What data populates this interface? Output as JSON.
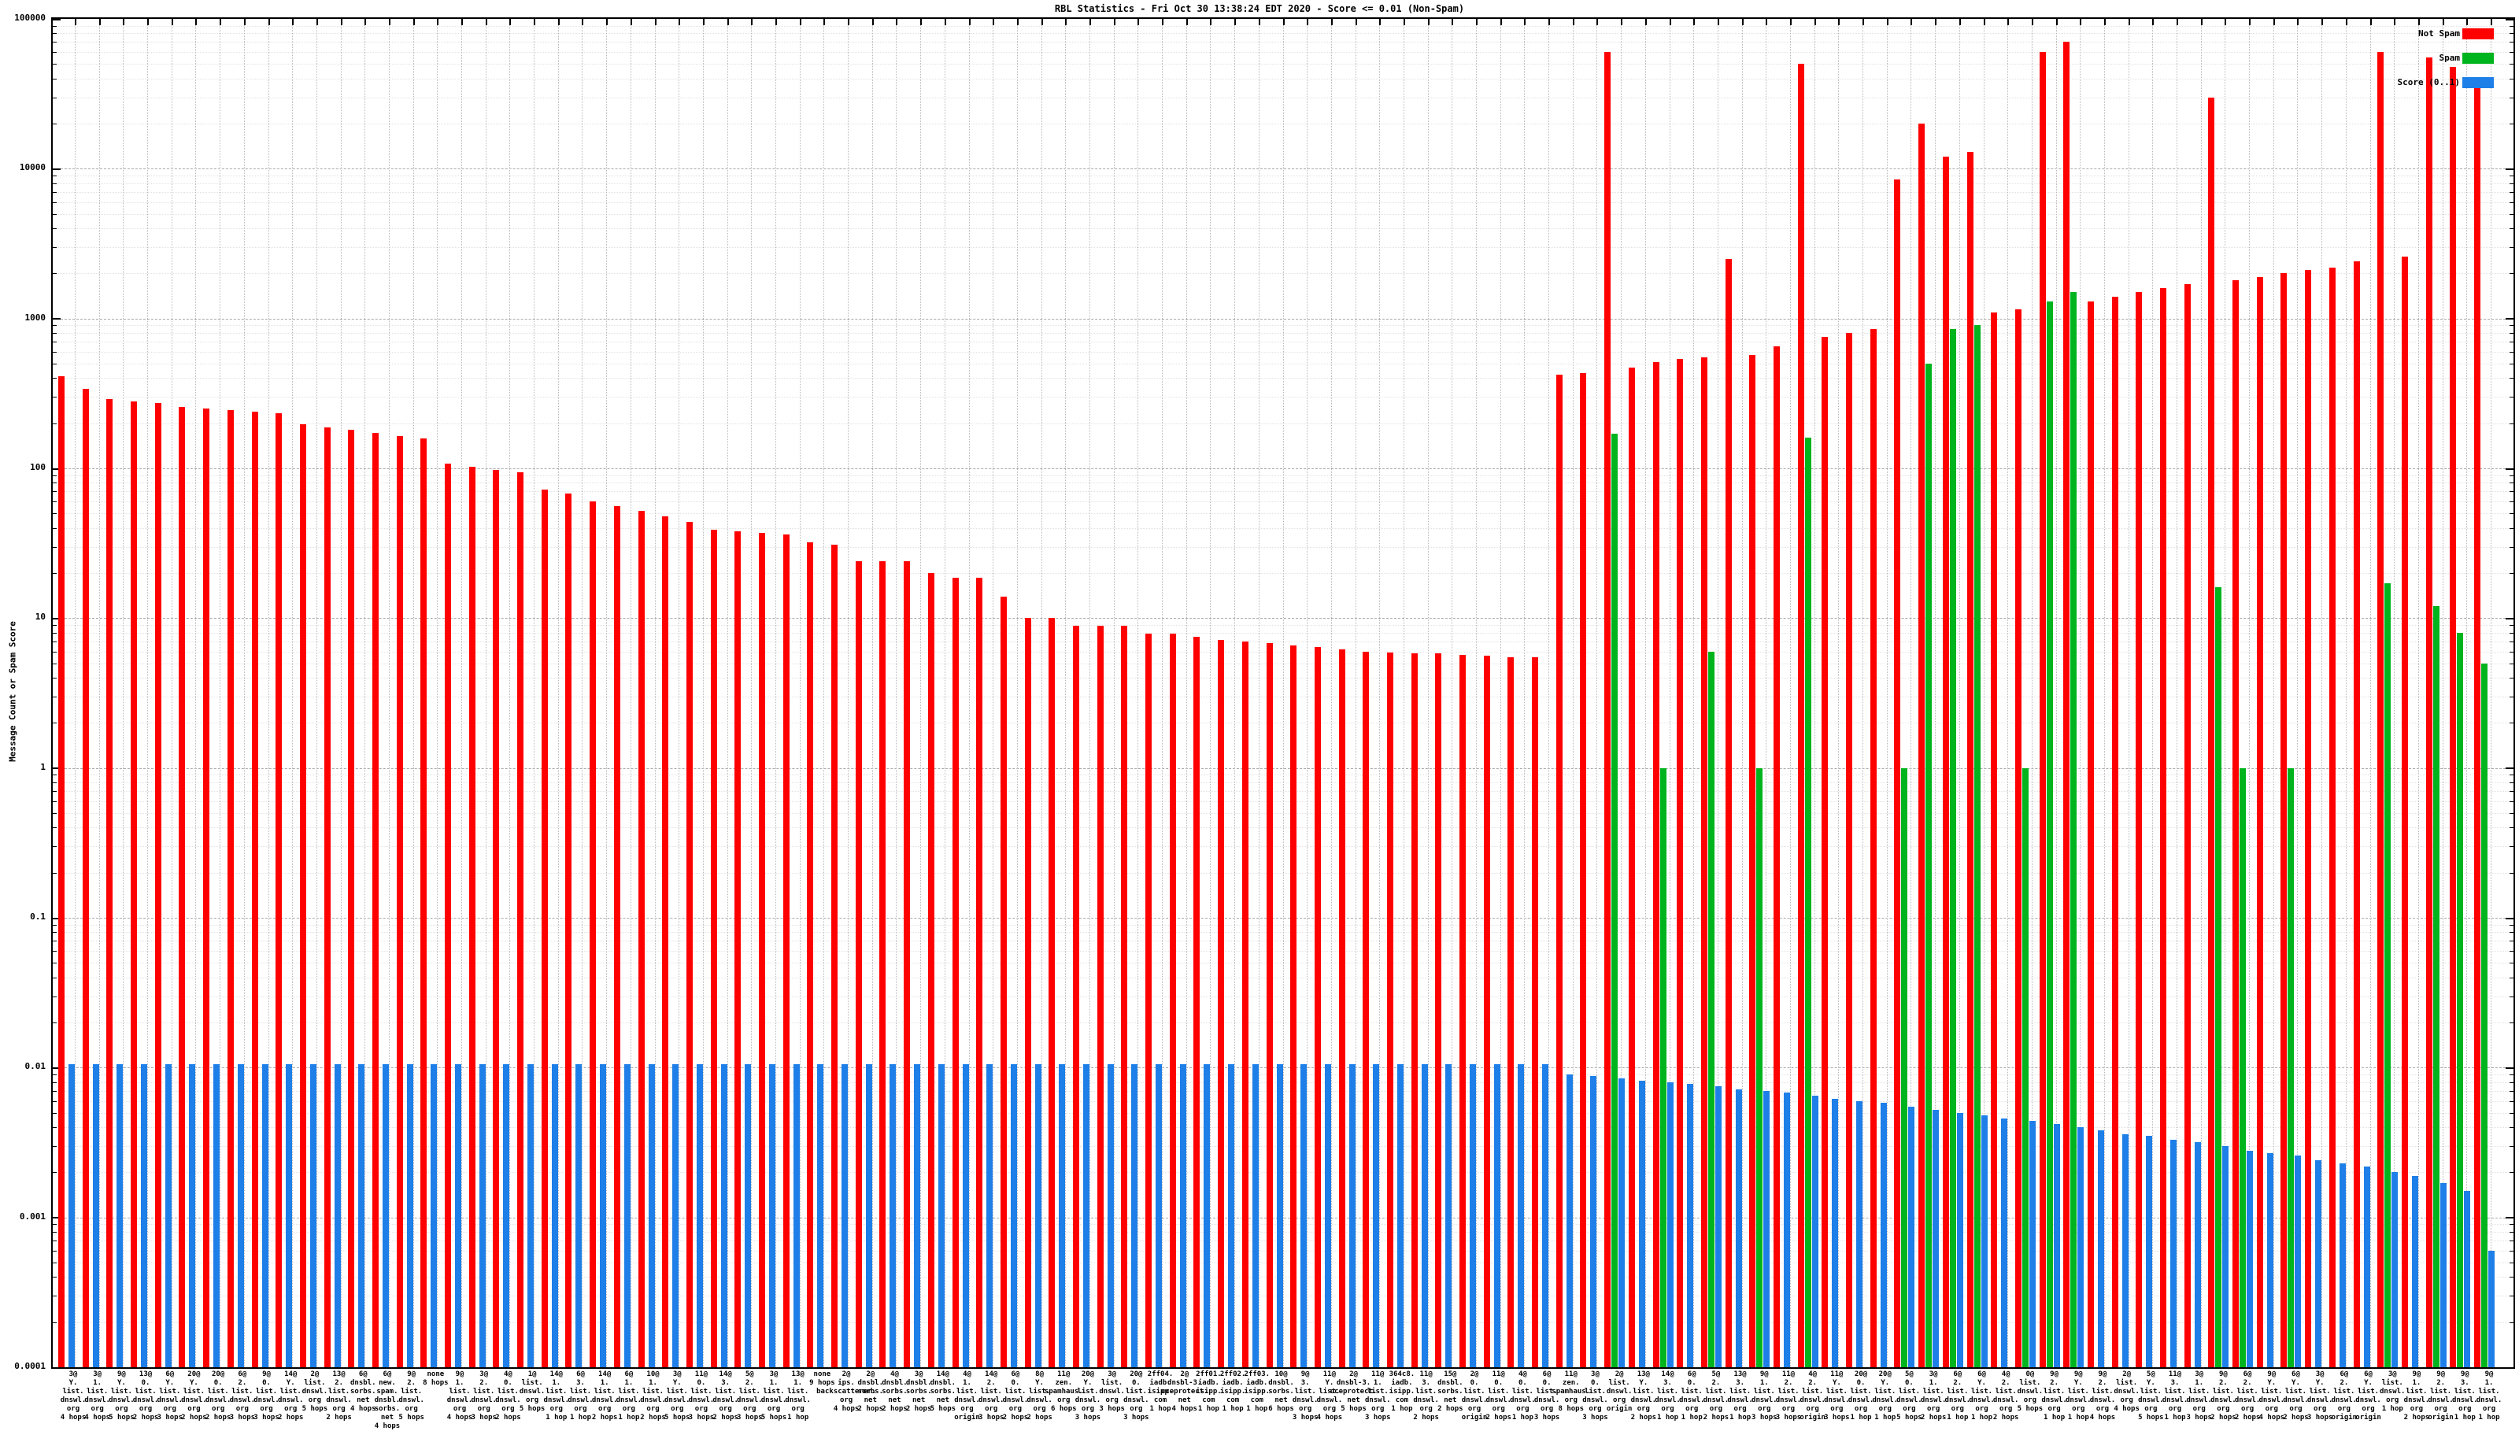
{
  "title": "RBL Statistics - Fri Oct 30 13:38:24 EDT 2020 - Score <= 0.01 (Non-Spam)",
  "y_axis": {
    "label": "Message Count or Spam Score",
    "tick_labels": [
      "100000",
      "10000",
      "1000",
      "100",
      "10",
      "1",
      "0.1",
      "0.01",
      "0.001",
      "0.0001"
    ]
  },
  "legend": [
    {
      "label": "Not Spam",
      "color": "#ff0000"
    },
    {
      "label": "Spam",
      "color": "#00b41e"
    },
    {
      "label": "Score (0..1)",
      "color": "#1e7fe8"
    }
  ],
  "chart_data": {
    "type": "bar",
    "scale": "log",
    "title": "RBL Statistics - Fri Oct 30 13:38:24 EDT 2020 - Score <= 0.01 (Non-Spam)",
    "ylabel": "Message Count or Spam Score",
    "ylim": [
      0.0001,
      100000
    ],
    "grid": true,
    "legend_position": "top-right",
    "categories": [
      "3@|Y.|list.|dnswl.|org|4 hops",
      "3@|1.|list.|dnswl.|org|4 hops",
      "9@|Y.|list.|dnswl.|org|5 hops",
      "13@|0.|list.|dnswl.|org|2 hops",
      "6@|Y.|list.|dnswl.|org|3 hops",
      "20@|Y.|list.|dnswl.|org|2 hops",
      "20@|0.|list.|dnswl.|org|2 hops",
      "6@|2.|list.|dnswl.|org|3 hops",
      "9@|0.|list.|dnswl.|org|3 hops",
      "14@|Y.|list.|dnswl.|org|2 hops",
      "2@|list.|dnswl.|org|5 hops",
      "13@|2.|list.|dnswl.|org|2 hops",
      "6@|dnsbl.|sorbs.|net|4 hops",
      "6@|new.|spam.|dnsbl.|sorbs.|net|4 hops",
      "9@|2.|list.|dnswl.|org|5 hops",
      "none|8 hops",
      "9@|1.|list.|dnswl.|org|4 hops",
      "3@|2.|list.|dnswl.|org|3 hops",
      "4@|0.|list.|dnswl.|org|2 hops",
      "1@|list.|dnswl.|org|5 hops",
      "14@|1.|list.|dnswl.|org|1 hop",
      "6@|3.|list.|dnswl.|org|1 hop",
      "14@|1.|list.|dnswl.|org|2 hops",
      "6@|1.|list.|dnswl.|org|1 hop",
      "10@|1.|list.|dnswl.|org|2 hops",
      "3@|Y.|list.|dnswl.|org|5 hops",
      "11@|0.|list.|dnswl.|org|3 hops",
      "14@|3.|list.|dnswl.|org|2 hops",
      "5@|2.|list.|dnswl.|org|3 hops",
      "3@|1.|list.|dnswl.|org|5 hops",
      "13@|1.|list.|dnswl.|org|1 hop",
      "none|9 hops",
      "2@|ips.|backscatterer.|org|4 hops",
      "2@|dnsbl.|sorbs.|net|2 hops",
      "4@|dnsbl.|sorbs.|net|2 hops",
      "3@|dnsbl.|sorbs.|net|2 hops",
      "14@|dnsbl.|sorbs.|net|5 hops",
      "4@|1.|list.|dnswl.|org|origin",
      "14@|2.|list.|dnswl.|org|3 hops",
      "6@|0.|list.|dnswl.|org|2 hops",
      "8@|Y.|list.|dnswl.|org|2 hops",
      "11@|zen.|spamhaus.|org|6 hops",
      "20@|Y.|list.|dnswl.|org|3 hops",
      "3@|list.|dnswl.|org|3 hops",
      "20@|0.|list.|dnswl.|org|3 hops",
      "2ff04.|iadb.|isipp.|com|1 hop",
      "2@|dnsbl-3.|uceprotect.|net|4 hops",
      "2ff01.|iadb.|isipp.|com|1 hop",
      "2ff02.|iadb.|isipp.|com|1 hop",
      "2ff03.|iadb.|isipp.|com|1 hop",
      "10@|dnsbl.|sorbs.|net|6 hops",
      "9@|3.|list.|dnswl.|org|3 hops",
      "11@|Y.|list.|dnswl.|org|4 hops",
      "2@|dnsbl-3.|uceprotect.|net|5 hops",
      "11@|1.|list.|dnswl.|org|3 hops",
      "364c8.|iadb.|isipp.|com|1 hop",
      "11@|3.|list.|dnswl.|org|2 hops",
      "15@|dnsbl.|sorbs.|net|2 hops",
      "2@|0.|list.|dnswl.|org|origin",
      "11@|0.|list.|dnswl.|org|2 hops",
      "4@|0.|list.|dnswl.|org|1 hop",
      "6@|0.|list.|dnswl.|org|3 hops",
      "11@|zen.|spamhaus.|org|8 hops",
      "3@|0.|list.|dnswl.|org|3 hops",
      "2@|list.|dnswl.|org|origin",
      "13@|Y.|list.|dnswl.|org|2 hops",
      "14@|3.|list.|dnswl.|org|1 hop",
      "6@|0.|list.|dnswl.|org|1 hop",
      "5@|2.|list.|dnswl.|org|2 hops",
      "13@|3.|list.|dnswl.|org|1 hop",
      "9@|1.|list.|dnswl.|org|3 hops",
      "11@|2.|list.|dnswl.|org|3 hops",
      "4@|2.|list.|dnswl.|org|origin",
      "11@|Y.|list.|dnswl.|org|3 hops",
      "20@|0.|list.|dnswl.|org|1 hop",
      "20@|Y.|list.|dnswl.|org|1 hop",
      "5@|0.|list.|dnswl.|org|5 hops",
      "3@|1.|list.|dnswl.|org|2 hops",
      "6@|2.|list.|dnswl.|org|1 hop",
      "6@|Y.|list.|dnswl.|org|1 hop",
      "4@|2.|list.|dnswl.|org|2 hops",
      "0@|list.|dnswl.|org|5 hops",
      "9@|2.|list.|dnswl.|org|1 hop",
      "9@|Y.|list.|dnswl.|org|1 hop",
      "9@|2.|list.|dnswl.|org|4 hops",
      "2@|list.|dnswl.|org|4 hops",
      "5@|Y.|list.|dnswl.|org|5 hops",
      "11@|3.|list.|dnswl.|org|1 hop",
      "3@|1.|list.|dnswl.|org|3 hops",
      "9@|2.|list.|dnswl.|org|2 hops",
      "6@|2.|list.|dnswl.|org|2 hops",
      "9@|Y.|list.|dnswl.|org|4 hops",
      "6@|Y.|list.|dnswl.|org|2 hops",
      "3@|Y.|list.|dnswl.|org|3 hops",
      "6@|2.|list.|dnswl.|org|origin",
      "6@|Y.|list.|dnswl.|org|origin",
      "3@|list.|dnswl.|org|1 hop",
      "9@|1.|list.|dnswl.|org|2 hops",
      "9@|2.|list.|dnswl.|org|origin",
      "9@|3.|list.|dnswl.|org|1 hop",
      "9@|1.|list.|dnswl.|org|1 hop"
    ],
    "series": [
      {
        "name": "Not Spam",
        "color": "#ff0000",
        "values": [
          410,
          340,
          290,
          280,
          272,
          258,
          252,
          246,
          240,
          232,
          196,
          188,
          180,
          172,
          165,
          158,
          108,
          103,
          98,
          94,
          72,
          68,
          60,
          56,
          52,
          48,
          44,
          39,
          38,
          37,
          36,
          32,
          31,
          24,
          24,
          24,
          20,
          18.5,
          18.5,
          14,
          10,
          10,
          8.9,
          8.9,
          8.9,
          7.9,
          7.9,
          7.5,
          7.2,
          7,
          6.8,
          6.6,
          6.4,
          6.2,
          6,
          5.9,
          5.8,
          5.8,
          5.7,
          5.6,
          5.5,
          5.5,
          420,
          430,
          60000,
          470,
          510,
          540,
          550,
          2500,
          570,
          650,
          50000,
          750,
          800,
          850,
          8500,
          20000,
          12000,
          13000,
          1100,
          1150,
          60000,
          70000,
          1300,
          1400,
          1500,
          1600,
          1700,
          30000,
          1800,
          1900,
          2000,
          2100,
          2200,
          2400,
          60000,
          2600,
          55000,
          48000,
          35000
        ]
      },
      {
        "name": "Spam",
        "color": "#00b41e",
        "values": [
          0,
          0,
          0,
          0,
          0,
          0,
          0,
          0,
          0,
          0,
          0,
          0,
          0,
          0,
          0,
          0,
          0,
          0,
          0,
          0,
          0,
          0,
          0,
          0,
          0,
          0,
          0,
          0,
          0,
          0,
          0,
          0,
          0,
          0,
          0,
          0,
          0,
          0,
          0,
          0,
          0,
          0,
          0,
          0,
          0,
          0,
          0,
          0,
          0,
          0,
          0,
          0,
          0,
          0,
          0,
          0,
          0,
          0,
          0,
          0,
          0,
          0,
          0,
          0,
          170,
          0,
          1,
          0,
          6,
          0,
          1,
          0,
          160,
          0,
          0,
          0,
          1,
          500,
          850,
          900,
          0,
          1,
          1300,
          1500,
          0,
          0,
          0,
          0,
          0,
          16,
          1,
          0,
          1,
          0,
          0,
          0,
          17,
          0,
          12,
          8,
          5
        ]
      },
      {
        "name": "Score (0..1)",
        "color": "#1e7fe8",
        "values": [
          0.0105,
          0.0105,
          0.0105,
          0.0105,
          0.0105,
          0.0105,
          0.0105,
          0.0105,
          0.0105,
          0.0105,
          0.0105,
          0.0105,
          0.0105,
          0.0105,
          0.0105,
          0.0105,
          0.0105,
          0.0105,
          0.0105,
          0.0105,
          0.0105,
          0.0105,
          0.0105,
          0.0105,
          0.0105,
          0.0105,
          0.0105,
          0.0105,
          0.0105,
          0.0105,
          0.0105,
          0.0105,
          0.0105,
          0.0105,
          0.0105,
          0.0105,
          0.0105,
          0.0105,
          0.0105,
          0.0105,
          0.0105,
          0.0105,
          0.0105,
          0.0105,
          0.0105,
          0.0105,
          0.0105,
          0.0105,
          0.0105,
          0.0105,
          0.0105,
          0.0105,
          0.0105,
          0.0105,
          0.0105,
          0.0105,
          0.0105,
          0.0105,
          0.0105,
          0.0105,
          0.0105,
          0.0105,
          0.009,
          0.0088,
          0.0085,
          0.0082,
          0.008,
          0.0078,
          0.0075,
          0.0072,
          0.007,
          0.0068,
          0.0065,
          0.0062,
          0.006,
          0.0058,
          0.0055,
          0.0052,
          0.005,
          0.0048,
          0.0046,
          0.0044,
          0.0042,
          0.004,
          0.0038,
          0.0036,
          0.0035,
          0.0033,
          0.0032,
          0.003,
          0.0028,
          0.0027,
          0.0026,
          0.0024,
          0.0023,
          0.0022,
          0.002,
          0.0019,
          0.0017,
          0.0015,
          0.0006
        ]
      }
    ]
  }
}
